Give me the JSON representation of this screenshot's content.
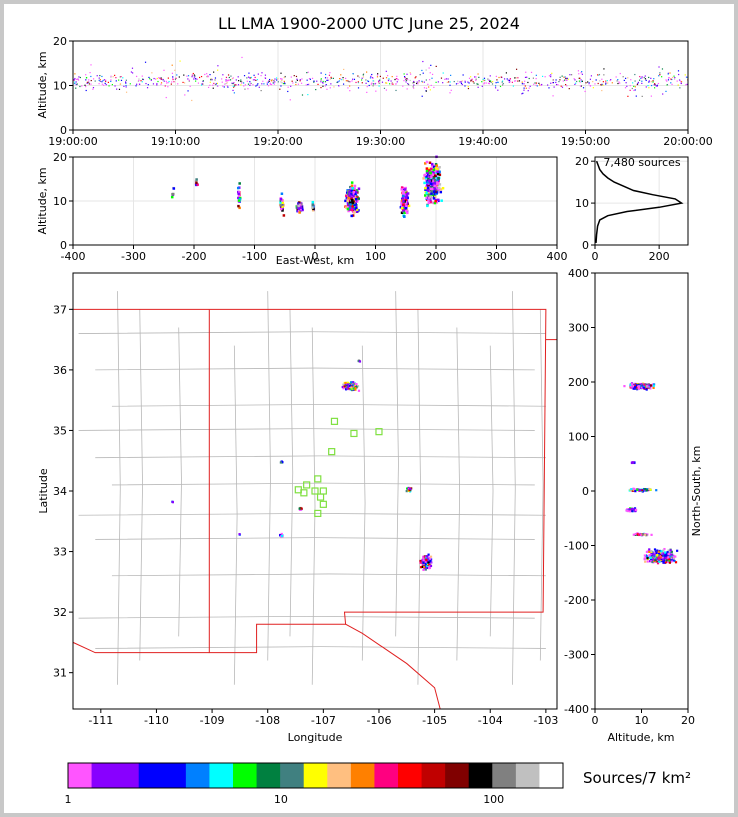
{
  "title": "LL LMA 1900-2000 UTC June 25, 2024",
  "colors": {
    "frame": "#c8c8c8",
    "state_border": "#e02020",
    "county_border": "#b8b8b8",
    "station": "#7fe040",
    "grid": "#e6e6e6"
  },
  "colorbar": {
    "label": "Sources/7 km²",
    "ticks": [
      "1",
      "10",
      "100"
    ],
    "colors": [
      "#ff55ff",
      "#8800ff",
      "#8800ff",
      "#0000ff",
      "#0000ff",
      "#0080ff",
      "#00ffff",
      "#00ff00",
      "#008040",
      "#408080",
      "#ffff00",
      "#ffbf80",
      "#ff8000",
      "#ff0080",
      "#ff0000",
      "#c00000",
      "#800000",
      "#000000",
      "#808080",
      "#c0c0c0",
      "#ffffff"
    ]
  },
  "chart_data": [
    {
      "type": "scatter",
      "panel": "time-height",
      "xlabel": "",
      "ylabel": "Altitude, km",
      "xticks": [
        "19:00:00",
        "19:10:00",
        "19:20:00",
        "19:30:00",
        "19:40:00",
        "19:50:00",
        "20:00:00"
      ],
      "xlim_minutes": [
        0,
        60
      ],
      "ylim": [
        0,
        20
      ],
      "yticks": [
        0,
        10,
        20
      ]
    },
    {
      "type": "scatter",
      "panel": "east-west-altitude",
      "xlabel": "East-West, km",
      "ylabel": "Altitude, km",
      "xlim": [
        -400,
        400
      ],
      "xticks": [
        -400,
        -300,
        -200,
        -100,
        0,
        100,
        200,
        300,
        400
      ],
      "ylim": [
        0,
        20
      ],
      "yticks": [
        0,
        10,
        20
      ],
      "clusters": [
        {
          "x": -235,
          "y": 12,
          "w": 4,
          "h": 3,
          "n": 6
        },
        {
          "x": -195,
          "y": 14,
          "w": 4,
          "h": 3,
          "n": 6
        },
        {
          "x": -125,
          "y": 11,
          "w": 3,
          "h": 5,
          "n": 20
        },
        {
          "x": -55,
          "y": 9,
          "w": 5,
          "h": 3,
          "n": 40
        },
        {
          "x": -25,
          "y": 8.5,
          "w": 7,
          "h": 2,
          "n": 60
        },
        {
          "x": -3,
          "y": 8.5,
          "w": 3,
          "h": 1.5,
          "n": 15
        },
        {
          "x": 62,
          "y": 10.5,
          "w": 16,
          "h": 5,
          "n": 260
        },
        {
          "x": 148,
          "y": 10,
          "w": 9,
          "h": 5,
          "n": 160
        },
        {
          "x": 195,
          "y": 14,
          "w": 20,
          "h": 7,
          "n": 360
        }
      ]
    },
    {
      "type": "line",
      "panel": "altitude-histogram",
      "annotation": "7,480 sources",
      "xlim": [
        0,
        290
      ],
      "xticks": [
        0,
        200
      ],
      "ylim": [
        0,
        21
      ],
      "yticks": [
        0,
        10,
        20
      ],
      "x": [
        3,
        5,
        8,
        15,
        40,
        100,
        200,
        270,
        250,
        180,
        120,
        90,
        60,
        40,
        25,
        15,
        10,
        5
      ],
      "y": [
        0.5,
        2.5,
        4.5,
        6,
        7,
        8,
        9,
        10,
        11,
        12,
        13,
        14,
        15,
        16,
        17,
        18,
        19,
        20
      ]
    },
    {
      "type": "scatter",
      "panel": "plan-view-map",
      "xlabel": "Longitude",
      "ylabel": "Latitude",
      "xlim": [
        -111.5,
        -102.8
      ],
      "xticks": [
        -111,
        -110,
        -109,
        -108,
        -107,
        -106,
        -105,
        -104,
        -103
      ],
      "ylim": [
        30.4,
        37.6
      ],
      "yticks": [
        31,
        32,
        33,
        34,
        35,
        36,
        37
      ],
      "stations": [
        {
          "lon": -106.8,
          "lat": 35.15
        },
        {
          "lon": -106.45,
          "lat": 34.95
        },
        {
          "lon": -106.0,
          "lat": 34.98
        },
        {
          "lon": -106.85,
          "lat": 34.65
        },
        {
          "lon": -107.0,
          "lat": 34.0
        },
        {
          "lon": -107.1,
          "lat": 34.2
        },
        {
          "lon": -107.3,
          "lat": 34.1
        },
        {
          "lon": -107.35,
          "lat": 33.97
        },
        {
          "lon": -107.45,
          "lat": 34.02
        },
        {
          "lon": -107.15,
          "lat": 34.0
        },
        {
          "lon": -107.05,
          "lat": 33.9
        },
        {
          "lon": -107.0,
          "lat": 33.78
        },
        {
          "lon": -107.1,
          "lat": 33.63
        }
      ],
      "clusters": [
        {
          "lon": -106.5,
          "lat": 35.73,
          "w": 0.22,
          "h": 0.1,
          "n": 140
        },
        {
          "lon": -106.35,
          "lat": 36.15,
          "w": 0.03,
          "h": 0.03,
          "n": 4
        },
        {
          "lon": -105.45,
          "lat": 34.02,
          "w": 0.08,
          "h": 0.05,
          "n": 25
        },
        {
          "lon": -105.15,
          "lat": 32.82,
          "w": 0.15,
          "h": 0.18,
          "n": 150
        },
        {
          "lon": -107.75,
          "lat": 34.47,
          "w": 0.03,
          "h": 0.03,
          "n": 6
        },
        {
          "lon": -107.75,
          "lat": 33.26,
          "w": 0.04,
          "h": 0.04,
          "n": 10
        },
        {
          "lon": -107.4,
          "lat": 33.7,
          "w": 0.05,
          "h": 0.03,
          "n": 12
        },
        {
          "lon": -108.5,
          "lat": 33.28,
          "w": 0.02,
          "h": 0.02,
          "n": 2
        },
        {
          "lon": -109.7,
          "lat": 33.82,
          "w": 0.02,
          "h": 0.02,
          "n": 2
        }
      ]
    },
    {
      "type": "scatter",
      "panel": "altitude-north-south",
      "xlabel": "Altitude, km",
      "ylabel": "North-South, km",
      "xlim": [
        0,
        20
      ],
      "xticks": [
        0,
        10,
        20
      ],
      "ylim": [
        -400,
        400
      ],
      "yticks": [
        -400,
        -300,
        -200,
        -100,
        0,
        100,
        200,
        300,
        400
      ],
      "clusters": [
        {
          "x": 10,
          "y": 192,
          "w": 4,
          "h": 8,
          "n": 200
        },
        {
          "x": 8,
          "y": 52,
          "w": 1.5,
          "h": 2,
          "n": 8
        },
        {
          "x": 10,
          "y": 2,
          "w": 4,
          "h": 4,
          "n": 60
        },
        {
          "x": 8,
          "y": -35,
          "w": 2,
          "h": 5,
          "n": 35
        },
        {
          "x": 10,
          "y": -80,
          "w": 3,
          "h": 3,
          "n": 25
        },
        {
          "x": 14,
          "y": -120,
          "w": 5,
          "h": 20,
          "n": 280
        }
      ]
    }
  ]
}
